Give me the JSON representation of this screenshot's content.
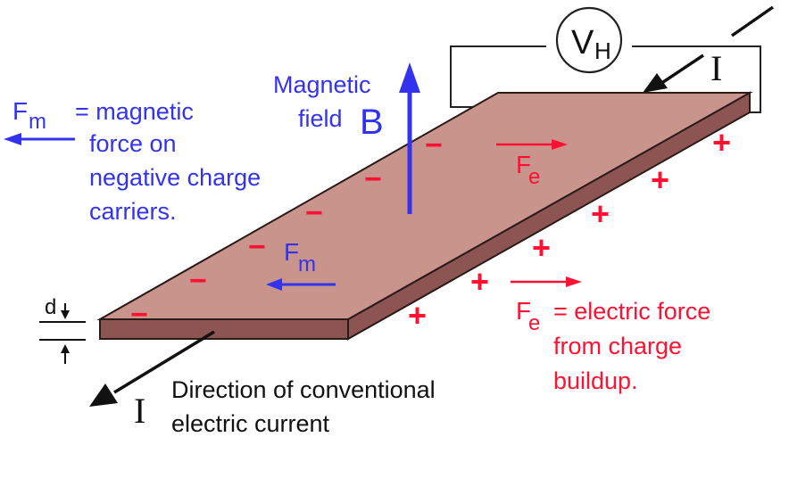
{
  "colors": {
    "blue": "#3333ee",
    "red": "#ff1133",
    "black": "#111111",
    "plate_top": "#c8948c",
    "plate_edge": "#8c5551",
    "plate_stroke": "#2a1a18"
  },
  "icons": {
    "current_arrow": "arrow-icon",
    "b_arrow": "arrow-up-icon",
    "fm_arrow": "arrow-left-icon",
    "fe_arrow": "arrow-right-icon"
  },
  "voltmeter": {
    "symbol": "V",
    "subscript": "H"
  },
  "current": {
    "symbol": "I"
  },
  "magnetic_field": {
    "line1": "Magnetic",
    "line2": "field",
    "symbol": "B"
  },
  "fm_legend": {
    "symbol": "F",
    "subscript": "m",
    "line1": "= magnetic",
    "line2": "force on",
    "line3": "negative charge",
    "line4": "carriers."
  },
  "fm_label": {
    "symbol": "F",
    "subscript": "m"
  },
  "fe_label": {
    "symbol": "F",
    "subscript": "e"
  },
  "fe_legend": {
    "symbol": "F",
    "subscript": "e",
    "line1": "= electric force",
    "line2": "from charge",
    "line3": "buildup."
  },
  "thickness": {
    "label": "d"
  },
  "current_caption": {
    "line1": "Direction of conventional",
    "line2": "electric current"
  },
  "charges": {
    "negative": "−",
    "positive": "+"
  }
}
